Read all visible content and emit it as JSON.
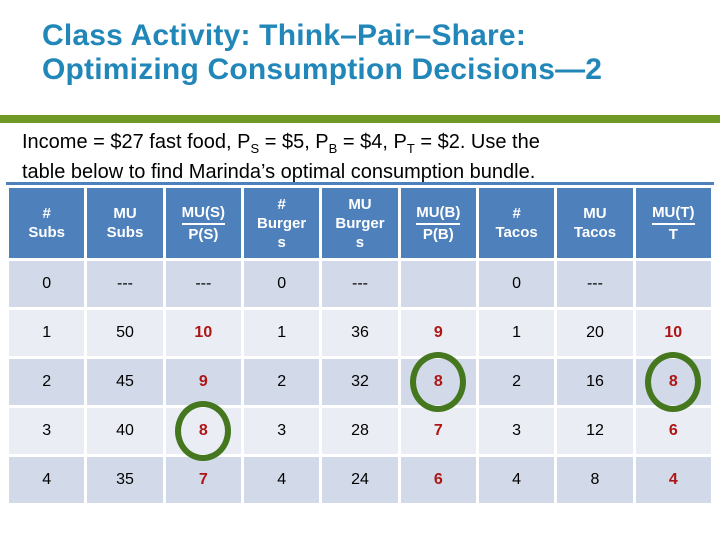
{
  "title": {
    "line1": "Class Activity: Think–Pair–Share:",
    "line2": "Optimizing Consumption Decisions—2"
  },
  "intro": {
    "line1": [
      {
        "t": "Income = $27 fast food, P"
      },
      {
        "sub": "S"
      },
      {
        "t": " = $5, P"
      },
      {
        "sub": "B"
      },
      {
        "t": " = $4, P"
      },
      {
        "sub": "T"
      },
      {
        "t": " = $2. Use the"
      }
    ],
    "line2": [
      {
        "t": "table below to find Marinda’s optimal consumption bundle."
      }
    ]
  },
  "table": {
    "headers": [
      {
        "lines": [
          "#",
          "Subs"
        ]
      },
      {
        "lines": [
          "MU",
          "Subs"
        ]
      },
      {
        "fraction": {
          "top": "MU(S)",
          "bottom": "P(S)"
        }
      },
      {
        "lines": [
          "#",
          "Burger",
          "s"
        ]
      },
      {
        "lines": [
          "MU",
          "Burger",
          "s"
        ]
      },
      {
        "fraction": {
          "top": "MU(B)",
          "bottom": "P(B)"
        }
      },
      {
        "lines": [
          "#",
          "Tacos"
        ]
      },
      {
        "lines": [
          "MU",
          "Tacos"
        ]
      },
      {
        "fraction": {
          "top": "MU(T)",
          "bottom": "T"
        }
      }
    ],
    "red_columns": [
      2,
      5,
      8
    ],
    "rows": [
      [
        "0",
        "---",
        "---",
        "0",
        "---",
        "",
        "0",
        "---",
        ""
      ],
      [
        "1",
        "50",
        "10",
        "1",
        "36",
        "9",
        "1",
        "20",
        "10"
      ],
      [
        "2",
        "45",
        "9",
        "2",
        "32",
        "8",
        "2",
        "16",
        "8"
      ],
      [
        "3",
        "40",
        "8",
        "3",
        "28",
        "7",
        "3",
        "12",
        "6"
      ],
      [
        "4",
        "35",
        "7",
        "4",
        "24",
        "6",
        "4",
        "8",
        "4"
      ]
    ],
    "circles": [
      {
        "row": 2,
        "col": 5
      },
      {
        "row": 2,
        "col": 8
      },
      {
        "row": 3,
        "col": 2
      }
    ]
  },
  "colors": {
    "title_blue": "#2186B8",
    "rule_green": "#6F9824",
    "header_blue": "#4E80BC",
    "band_dark": "#D2D9E8",
    "band_light": "#EAEDF4",
    "value_red": "#AE1616",
    "circle_green": "#45771F",
    "body_text": "#000000"
  }
}
